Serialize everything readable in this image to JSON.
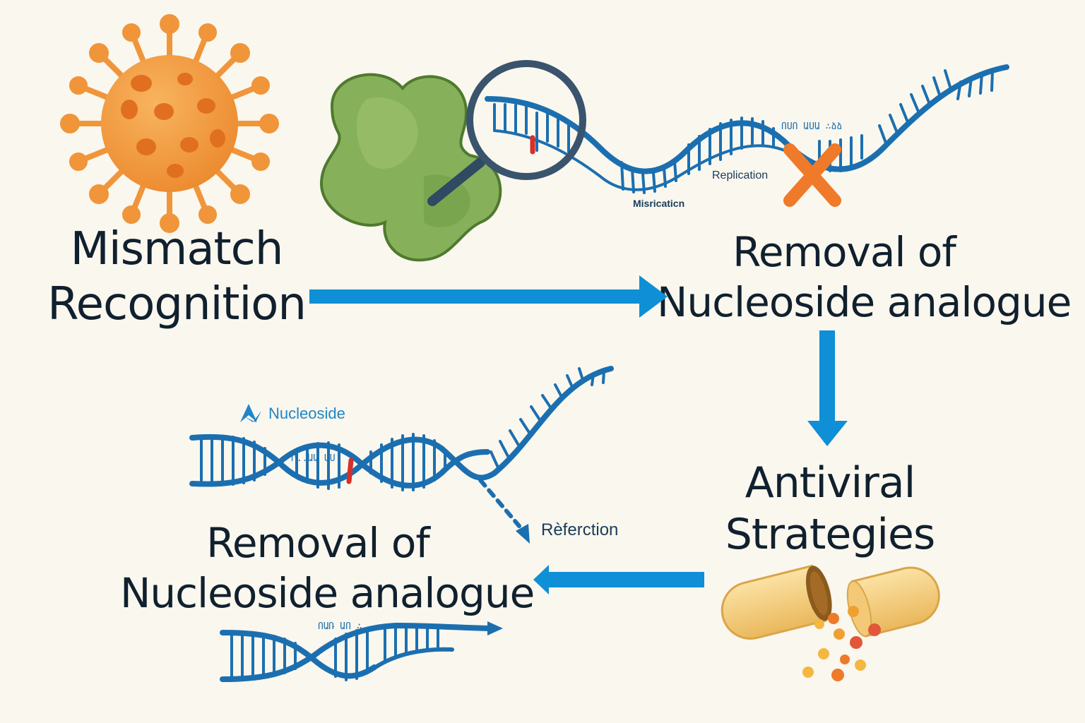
{
  "nodes": {
    "mismatch": {
      "line1": "Mismatch",
      "line2": "Recognition"
    },
    "removal_top": {
      "line1": "Removal of",
      "line2": "Nucleoside analogue"
    },
    "antiviral": {
      "line1": "Antiviral",
      "line2": "Strategies"
    },
    "removal_bottom": {
      "line1": "Removal of",
      "line2": "Nucleoside analogue"
    }
  },
  "labels": {
    "replication": "Replication",
    "misrication": "Misricaticn",
    "nucleoside": "Nucleoside",
    "referction": "Rèferction",
    "top_strand_text": "ՈՍՈ ԱՍԱ ∴ձձ",
    "mid_strand_text": "Ր..ԱԱ ԱՍ",
    "bottom_strand_text": "ՈԱՌ ԱՈ ∴"
  },
  "colors": {
    "background": "#faf7ee",
    "dna_blue": "#1b6fb0",
    "arrow_blue": "#0f8fd6",
    "virus_orange": "#f0953a",
    "protein_green": "#86b05a",
    "mismatch_red": "#d6302a",
    "x_orange": "#ee7a2a",
    "capsule_yellow": "#f6d28a",
    "heading_text": "#10202e"
  },
  "icons": [
    "virus-icon",
    "protein-blob-icon",
    "magnifier-icon",
    "blocked-x-icon",
    "capsule-icon",
    "nucleoside-logo-icon"
  ]
}
